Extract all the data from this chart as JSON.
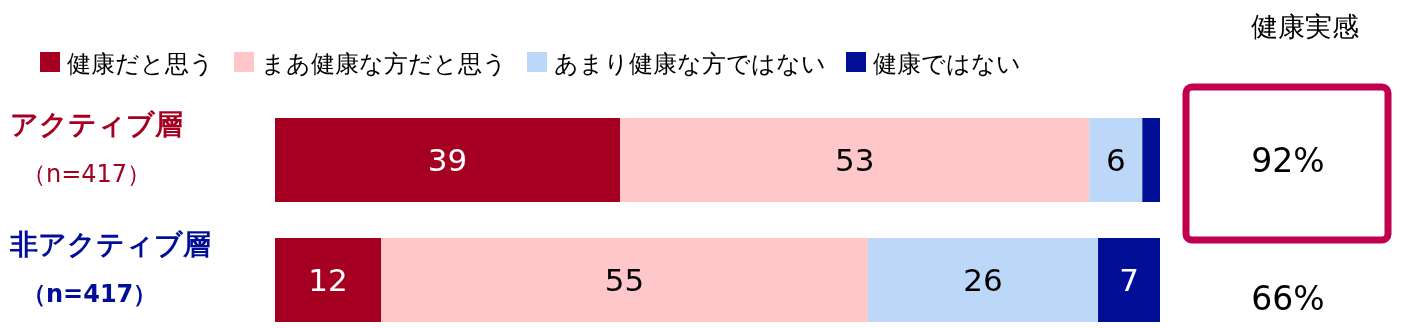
{
  "chart_data": {
    "type": "bar",
    "orientation": "horizontal",
    "stacked": true,
    "categories": [
      "アクティブ層（n=417）",
      "非アクティブ層（n=417）"
    ],
    "series": [
      {
        "name": "健康だと思う",
        "color": "#a50021",
        "values": [
          39,
          12
        ],
        "value_labels": [
          "39",
          "12"
        ]
      },
      {
        "name": "まあ健康な方だと思う",
        "color": "#ffc7ca",
        "values": [
          53,
          55
        ],
        "value_labels": [
          "53",
          "55"
        ]
      },
      {
        "name": "あまり健康な方ではない",
        "color": "#bdd7f8",
        "values": [
          6,
          26
        ],
        "value_labels": [
          "6",
          "26"
        ]
      },
      {
        "name": "健康ではない",
        "color": "#000f96",
        "values": [
          2,
          7
        ],
        "value_labels": [
          null,
          "7"
        ]
      }
    ],
    "xlim": [
      0,
      100
    ],
    "legend": "top",
    "annotations": [
      "健康実感",
      "92%",
      "66%"
    ]
  }
}
